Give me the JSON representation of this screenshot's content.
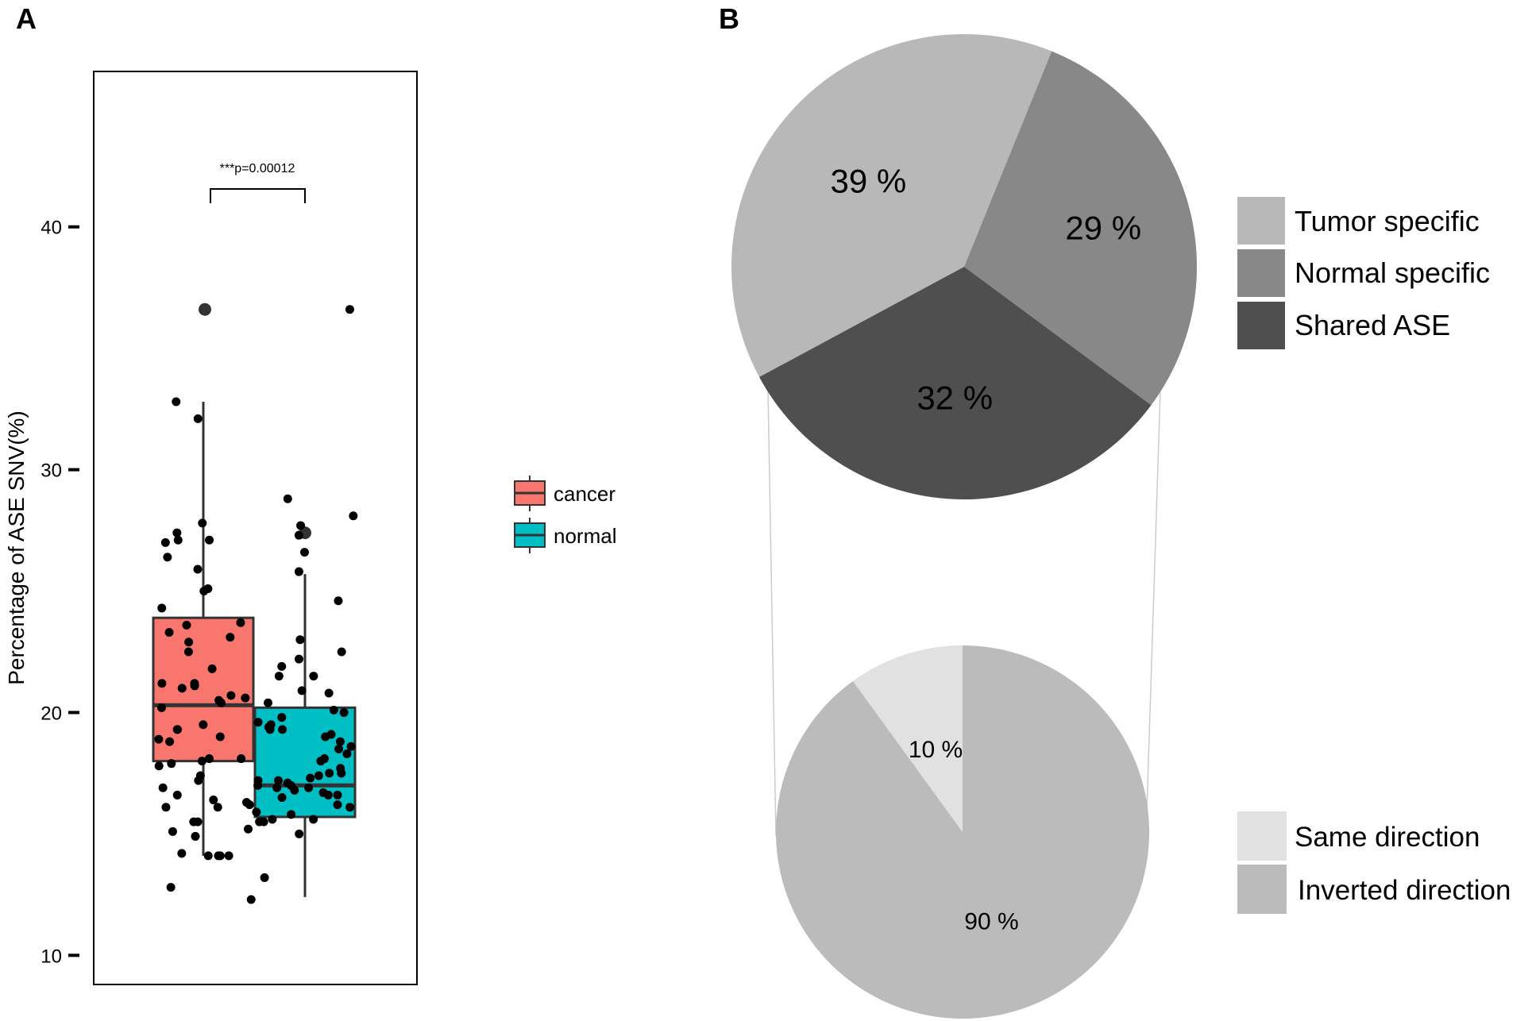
{
  "panel_a": {
    "label": "A",
    "chart_data": {
      "type": "box",
      "ylabel": "Percentage of ASE SNV(%)",
      "ylim": [
        8.8,
        46.4
      ],
      "yticks": [
        10,
        20,
        30,
        40
      ],
      "annotation": "***p=0.00012",
      "legend_position": "right",
      "series": [
        {
          "name": "cancer",
          "color": "#F8766D",
          "box": {
            "q1": 18.0,
            "median": 20.3,
            "q3": 23.9,
            "whisker_low": 14.1,
            "whisker_high": 32.8
          },
          "outliers": [
            36.6
          ],
          "points": [
            27.8,
            27.1,
            27.0,
            27.1,
            25.9,
            25.0,
            24.3,
            23.7,
            21.8,
            21.2,
            21.0,
            20.7,
            20.5,
            20.2,
            19.5,
            19.3,
            19.0,
            18.8,
            18.1,
            18.0,
            17.9,
            17.8,
            16.3,
            16.2,
            16.1,
            15.5,
            15.2,
            15.1,
            14.9,
            14.1,
            14.1,
            14.2,
            12.8,
            12.3,
            32.1,
            27.4,
            25.1,
            23.6,
            23.3,
            23.1,
            22.9,
            22.5,
            21.2,
            20.6,
            19.3,
            18.1,
            17.4,
            16.6,
            16.4,
            15.5,
            14.1,
            14.1,
            26.4,
            32.8,
            17.2,
            16.9,
            18.9,
            21.1,
            20.4,
            16.1
          ]
        },
        {
          "name": "normal",
          "color": "#00BFC4",
          "box": {
            "q1": 15.7,
            "median": 17.0,
            "q3": 20.2,
            "whisker_low": 12.4,
            "whisker_high": 25.7
          },
          "outliers": [
            27.4
          ],
          "points": [
            36.6,
            28.8,
            27.3,
            26.6,
            25.8,
            24.6,
            23.0,
            22.2,
            21.9,
            21.5,
            20.8,
            19.4,
            19.3,
            19.1,
            18.8,
            18.6,
            18.3,
            17.7,
            17.5,
            17.4,
            17.3,
            17.2,
            17.1,
            17.0,
            16.9,
            16.8,
            16.7,
            16.6,
            16.5,
            16.1,
            15.9,
            15.8,
            15.6,
            15.0,
            13.2,
            28.1,
            27.7,
            22.5,
            21.5,
            20.9,
            20.4,
            20.1,
            20.0,
            19.8,
            19.6,
            19.5,
            19.0,
            18.1,
            18.0,
            17.5,
            17.2,
            16.6,
            15.6,
            15.5,
            15.5,
            17.0,
            16.9,
            16.2,
            18.5,
            19.3
          ]
        }
      ]
    }
  },
  "panel_b": {
    "label": "B",
    "chart_data": [
      {
        "type": "pie",
        "slices": [
          {
            "label": "Tumor specific",
            "value": 39,
            "text": "39 %",
            "color": "#B8B8B8"
          },
          {
            "label": "Normal specific",
            "value": 29,
            "text": "29 %",
            "color": "#888888"
          },
          {
            "label": "Shared ASE",
            "value": 32,
            "text": "32 %",
            "color": "#4F4F4F"
          }
        ]
      },
      {
        "type": "pie",
        "slices": [
          {
            "label": "Same direction",
            "value": 10,
            "text": "10 %",
            "color": "#E1E1E1"
          },
          {
            "label": "Inverted direction",
            "value": 90,
            "text": "90 %",
            "color": "#BBBBBB"
          }
        ]
      }
    ]
  }
}
